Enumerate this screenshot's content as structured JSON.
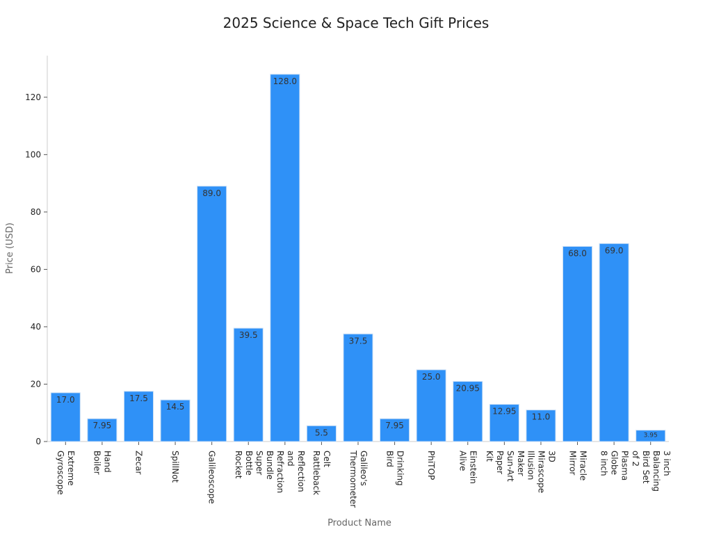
{
  "chart_data": {
    "type": "bar",
    "title": "2025 Science & Space Tech Gift Prices",
    "x_label": "Product Name",
    "y_label": "Price (USD)",
    "categories": [
      "Extreme\nGyroscope",
      "Hand\nBoiler",
      "Zecar",
      "SpillNot",
      "Galileoscope",
      "Super\nBottle\nRocket",
      "Reflection\nand\nRefraction\nBundle",
      "Celt\nRattleback",
      "Galileo's\nThermometer",
      "Drinking\nBird",
      "PhiTOP",
      "Einstein\nAlive",
      "Maker\nSun-Art\nPaper\nKit",
      "3D\nMirascope\nIllusion",
      "Miracle\nMirror",
      "Plasma\nGlobe\n8 inch",
      "3 inch\nBalancing\nBird Set\nof 2"
    ],
    "values": [
      17.0,
      7.95,
      17.5,
      14.5,
      89.0,
      39.5,
      128.0,
      5.5,
      37.5,
      7.95,
      25.0,
      20.95,
      12.95,
      11.0,
      68.0,
      69.0,
      3.95
    ],
    "value_labels": [
      "17.0",
      "7.95",
      "17.5",
      "14.5",
      "89.0",
      "39.5",
      "128.0",
      "5.5",
      "37.5",
      "7.95",
      "25.0",
      "20.95",
      "12.95",
      "11.0",
      "68.0",
      "69.0",
      "3.95"
    ],
    "color": "#2f91f7",
    "ylim": [
      0,
      134.5
    ],
    "yticks": [
      0,
      20,
      40,
      60,
      80,
      100,
      120
    ]
  }
}
